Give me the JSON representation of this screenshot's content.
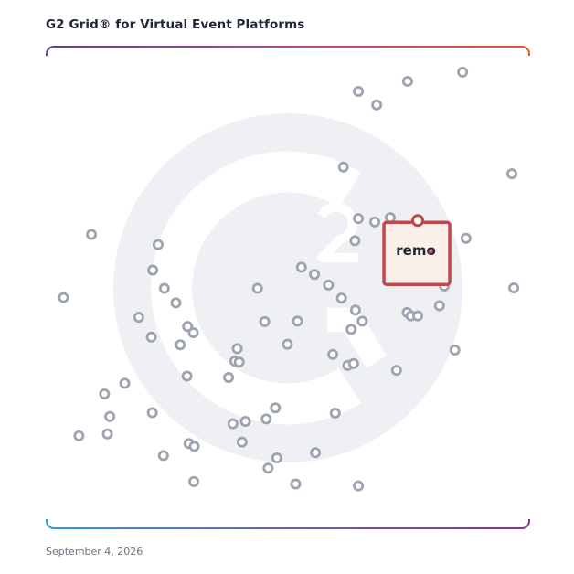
{
  "header": {
    "title": "G2 Grid® for Virtual Event Platforms"
  },
  "footer": {
    "date": "September 4, 2026"
  },
  "chart_data": {
    "type": "scatter",
    "title": "G2 Grid® for Virtual Event Platforms",
    "xlim": [
      0,
      100
    ],
    "ylim": [
      0,
      100
    ],
    "quadrant_split": {
      "x": 50,
      "y": 50
    },
    "grid": false,
    "background_logo": "g2-logo",
    "colors": {
      "point": "#9ea3b0",
      "highlight": "#c0474b",
      "highlight_fill": "#fbefe9",
      "logo_bg": "#eef0f3",
      "border_top_left": "#5a3fa0",
      "border_top_right": "#e8552a",
      "border_bottom_left": "#2e9bd8",
      "border_bottom_right": "#8a2f9a"
    },
    "highlighted": {
      "label": "remo",
      "x": 76.9,
      "y": 63.9
    },
    "points": [
      {
        "x": 86.2,
        "y": 94.7
      },
      {
        "x": 74.8,
        "y": 92.8
      },
      {
        "x": 64.6,
        "y": 90.7
      },
      {
        "x": 68.4,
        "y": 87.9
      },
      {
        "x": 96.4,
        "y": 73.6
      },
      {
        "x": 61.5,
        "y": 75.0
      },
      {
        "x": 64.6,
        "y": 64.3
      },
      {
        "x": 68.0,
        "y": 63.6
      },
      {
        "x": 71.2,
        "y": 64.5
      },
      {
        "x": 86.9,
        "y": 60.2
      },
      {
        "x": 63.9,
        "y": 59.7
      },
      {
        "x": 9.3,
        "y": 61.0
      },
      {
        "x": 23.1,
        "y": 58.9
      },
      {
        "x": 22.0,
        "y": 53.6
      },
      {
        "x": 52.8,
        "y": 54.2
      },
      {
        "x": 55.5,
        "y": 52.7
      },
      {
        "x": 58.4,
        "y": 50.5
      },
      {
        "x": 82.4,
        "y": 50.3
      },
      {
        "x": 96.8,
        "y": 49.9
      },
      {
        "x": 3.5,
        "y": 47.9
      },
      {
        "x": 24.4,
        "y": 49.8
      },
      {
        "x": 43.7,
        "y": 49.8
      },
      {
        "x": 61.1,
        "y": 47.8
      },
      {
        "x": 26.8,
        "y": 46.8
      },
      {
        "x": 64.0,
        "y": 45.3
      },
      {
        "x": 74.7,
        "y": 44.8
      },
      {
        "x": 75.5,
        "y": 44.1
      },
      {
        "x": 76.9,
        "y": 44.1
      },
      {
        "x": 81.4,
        "y": 46.2
      },
      {
        "x": 19.1,
        "y": 43.8
      },
      {
        "x": 29.2,
        "y": 41.9
      },
      {
        "x": 45.2,
        "y": 42.9
      },
      {
        "x": 52.0,
        "y": 43.0
      },
      {
        "x": 65.4,
        "y": 43.0
      },
      {
        "x": 63.1,
        "y": 41.3
      },
      {
        "x": 30.4,
        "y": 40.6
      },
      {
        "x": 21.7,
        "y": 39.7
      },
      {
        "x": 27.7,
        "y": 38.1
      },
      {
        "x": 49.9,
        "y": 38.2
      },
      {
        "x": 39.5,
        "y": 37.3
      },
      {
        "x": 59.3,
        "y": 36.1
      },
      {
        "x": 84.6,
        "y": 37.0
      },
      {
        "x": 39.0,
        "y": 34.7
      },
      {
        "x": 39.9,
        "y": 34.5
      },
      {
        "x": 62.4,
        "y": 33.8
      },
      {
        "x": 63.6,
        "y": 34.2
      },
      {
        "x": 72.5,
        "y": 32.8
      },
      {
        "x": 29.1,
        "y": 31.6
      },
      {
        "x": 37.7,
        "y": 31.3
      },
      {
        "x": 16.2,
        "y": 30.1
      },
      {
        "x": 12.0,
        "y": 27.9
      },
      {
        "x": 47.4,
        "y": 25.0
      },
      {
        "x": 21.9,
        "y": 24.0
      },
      {
        "x": 59.8,
        "y": 23.9
      },
      {
        "x": 13.1,
        "y": 23.2
      },
      {
        "x": 45.5,
        "y": 22.7
      },
      {
        "x": 38.6,
        "y": 21.7
      },
      {
        "x": 41.2,
        "y": 22.2
      },
      {
        "x": 12.6,
        "y": 19.6
      },
      {
        "x": 6.7,
        "y": 19.2
      },
      {
        "x": 40.5,
        "y": 17.9
      },
      {
        "x": 29.5,
        "y": 17.6
      },
      {
        "x": 30.6,
        "y": 17.0
      },
      {
        "x": 55.7,
        "y": 15.7
      },
      {
        "x": 24.2,
        "y": 15.1
      },
      {
        "x": 47.7,
        "y": 14.6
      },
      {
        "x": 45.9,
        "y": 12.5
      },
      {
        "x": 30.5,
        "y": 9.7
      },
      {
        "x": 51.6,
        "y": 9.2
      },
      {
        "x": 64.6,
        "y": 8.8
      }
    ]
  }
}
